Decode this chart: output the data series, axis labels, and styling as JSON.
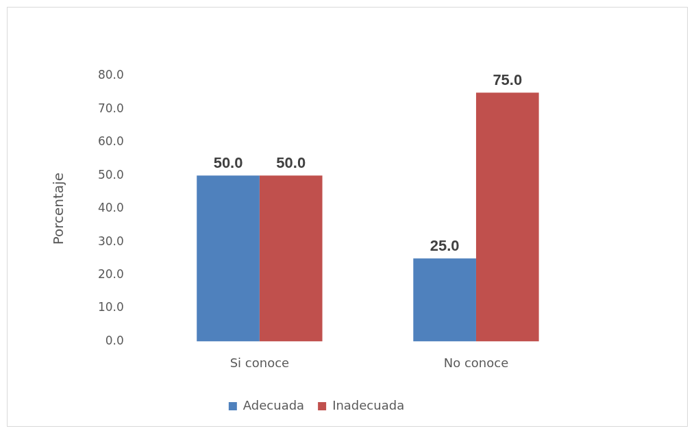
{
  "chart_data": {
    "type": "bar",
    "ylabel": "Porcentaje",
    "categories": [
      "Si conoce",
      "No conoce"
    ],
    "series": [
      {
        "name": "Adecuada",
        "color": "#4f81bd",
        "values": [
          50,
          25
        ],
        "value_labels": [
          "50.0",
          "25.0"
        ]
      },
      {
        "name": "Inadecuada",
        "color": "#c0504d",
        "values": [
          50,
          75
        ],
        "value_labels": [
          "50.0",
          "75.0"
        ]
      }
    ],
    "ylim": [
      0,
      80
    ],
    "yticks": [
      {
        "value": 0,
        "label": "0.0"
      },
      {
        "value": 10,
        "label": "10.0"
      },
      {
        "value": 20,
        "label": "20.0"
      },
      {
        "value": 30,
        "label": "30.0"
      },
      {
        "value": 40,
        "label": "40.0"
      },
      {
        "value": 50,
        "label": "50.0"
      },
      {
        "value": 60,
        "label": "60.0"
      },
      {
        "value": 70,
        "label": "70.0"
      },
      {
        "value": 80,
        "label": "80.0"
      }
    ],
    "grid": false,
    "legend": "bottom"
  }
}
